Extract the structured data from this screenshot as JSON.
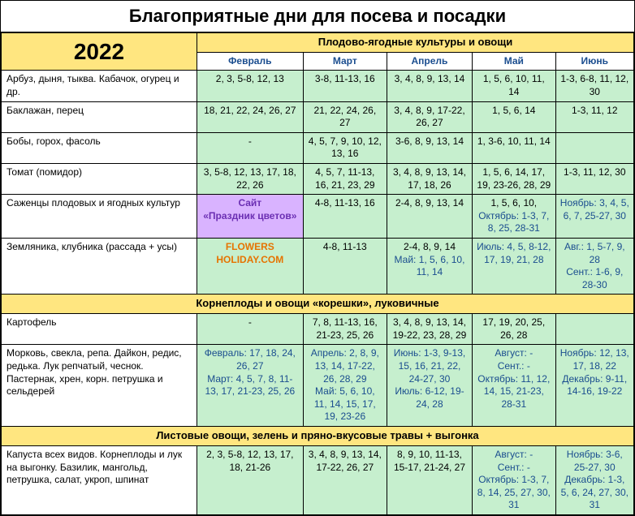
{
  "title": "Благоприятные дни для посева и посадки",
  "year": "2022",
  "section1": "Плодово-ягодные культуры и овощи",
  "section2": "Корнеплоды и овощи «корешки», луковичные",
  "section3": "Листовые овощи, зелень и пряно-вкусовые травы + выгонка",
  "months": {
    "feb": "Февраль",
    "mar": "Март",
    "apr": "Апрель",
    "may": "Май",
    "jun": "Июнь"
  },
  "rows": {
    "r1": {
      "name": "Арбуз, дыня, тыква. Кабачок, огурец и др.",
      "feb": "2, 3, 5-8, 12, 13",
      "mar": "3-8, 11-13, 16",
      "apr": "3, 4, 8, 9, 13, 14",
      "may": "1, 5, 6, 10, 11, 14",
      "jun": "1-3, 6-8, 11, 12, 30"
    },
    "r2": {
      "name": "Баклажан, перец",
      "feb": "18, 21, 22, 24, 26, 27",
      "mar": "21, 22, 24, 26, 27",
      "apr": "3, 4, 8, 9, 17-22, 26, 27",
      "may": "1, 5, 6, 14",
      "jun": "1-3, 11, 12"
    },
    "r3": {
      "name": "Бобы, горох, фасоль",
      "feb": "-",
      "mar": "4, 5, 7, 9, 10, 12, 13, 16",
      "apr": "3-6, 8, 9, 13, 14",
      "may": "1, 3-6, 10, 11, 14",
      "jun": ""
    },
    "r4": {
      "name": "Томат (помидор)",
      "feb": "3, 5-8, 12, 13, 17, 18, 22, 26",
      "mar": "4, 5, 7, 11-13, 16, 21, 23, 29",
      "apr": "3, 4, 8, 9, 13, 14, 17, 18, 26",
      "may": "1, 5, 6, 14, 17, 19,  23-26, 28, 29",
      "jun": "1-3, 11, 12, 30"
    },
    "r5": {
      "name": "Саженцы плодовых и ягодных культур",
      "purple1": "Сайт",
      "purple2": "«Праздник цветов»",
      "mar": "4-8, 11-13, 16",
      "apr": "2-4, 8, 9, 13, 14",
      "may_a": "1, 5, 6, 10,",
      "may_b": "Октябрь: 1-3, 7, 8, 25, 28-31",
      "jun_a": "Ноябрь: 3, 4, 5, 6, 7, 25-27, 30"
    },
    "r6": {
      "name": "Земляника, клубника (рассада + усы)",
      "orange1": "FLOWERS",
      "orange2": "HOLIDAY.COM",
      "mar": "4-8, 11-13",
      "apr_a": "2-4, 8, 9, 14",
      "apr_b": "Май: 1, 5, 6, 10, 11, 14",
      "may_a": "Июль: 4, 5, 8-12, 17, 19, 21, 28",
      "jun_a": "Авг.: 1, 5-7, 9, 28",
      "jun_b": "Сент.: 1-6, 9, 28-30"
    },
    "r7": {
      "name": "Картофель",
      "feb": "-",
      "mar": "7, 8, 11-13, 16, 21-23, 25, 26",
      "apr": "3, 4, 8, 9, 13, 14, 19-22, 23, 28, 29",
      "may": "17, 19, 20, 25, 26, 28",
      "jun": ""
    },
    "r8": {
      "name": "Морковь, свекла, репа. Дайкон, редис, редька. Лук репчатый, чеснок. Пастернак, хрен, корн. петрушка и сельдерей",
      "feb_a": "Февраль: 17, 18, 24, 26, 27",
      "feb_b": "Март: 4, 5, 7, 8, 11-13, 17, 21-23, 25, 26",
      "mar_a": "Апрель: 2, 8, 9, 13, 14, 17-22, 26, 28, 29",
      "mar_b": "Май: 5, 6, 10, 11, 14, 15, 17, 19, 23-26",
      "apr_a": "Июнь: 1-3, 9-13, 15, 16, 21, 22, 24-27, 30",
      "apr_b": "Июль: 6-12, 19-24, 28",
      "may_a": "Август: -",
      "may_b": "Сент.: -",
      "may_c": "Октябрь: 11, 12, 14, 15, 21-23, 28-31",
      "jun_a": "Ноябрь: 12, 13, 17, 18, 22",
      "jun_b": "Декабрь: 9-11, 14-16, 19-22"
    },
    "r9": {
      "name": "Капуста всех видов. Корнеплоды и лук на выгонку. Базилик, мангольд, петрушка, салат, укроп, шпинат",
      "feb": "2, 3, 5-8, 12, 13, 17, 18, 21-26",
      "mar": "3, 4, 8, 9, 13, 14, 17-22, 26, 27",
      "apr": "8, 9, 10, 11-13, 15-17, 21-24, 27",
      "may_a": "Август: -",
      "may_b": "Сент.: -",
      "may_c": "Октябрь: 1-3, 7, 8, 14, 25, 27, 30, 31",
      "jun_a": "Ноябрь: 3-6, 25-27, 30",
      "jun_b": "Декабрь: 1-3, 5, 6, 24, 27, 30, 31"
    }
  }
}
